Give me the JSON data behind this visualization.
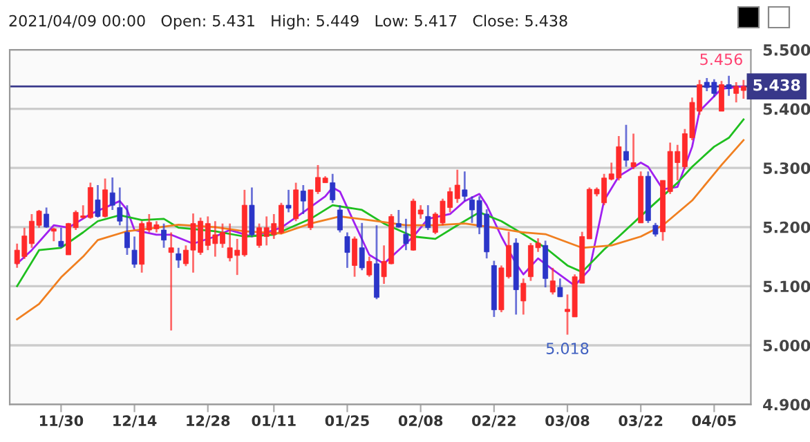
{
  "chart_data": {
    "type": "candlestick",
    "title": "2021/04/09 00:00   Open: 5.431   High: 5.449   Low: 5.417   Close: 5.438",
    "categories": [
      null,
      null,
      null,
      null,
      null,
      null,
      "11/30",
      null,
      null,
      null,
      null,
      null,
      null,
      null,
      null,
      null,
      "12/14",
      null,
      null,
      null,
      null,
      null,
      null,
      null,
      null,
      null,
      "12/28",
      null,
      null,
      null,
      null,
      null,
      null,
      null,
      null,
      "01/11",
      null,
      null,
      null,
      null,
      null,
      null,
      null,
      null,
      null,
      "01/25",
      null,
      null,
      null,
      null,
      null,
      null,
      null,
      null,
      null,
      "02/08",
      null,
      null,
      null,
      null,
      null,
      null,
      null,
      null,
      null,
      "02/22",
      null,
      null,
      null,
      null,
      null,
      null,
      null,
      null,
      null,
      "03/08",
      null,
      null,
      null,
      null,
      null,
      null,
      null,
      null,
      null,
      "03/22",
      null,
      null,
      null,
      null,
      null,
      null,
      null,
      null,
      null,
      "04/05",
      null,
      null,
      null,
      null
    ],
    "ohlc": [
      [
        5.138,
        5.172,
        5.131,
        5.161
      ],
      [
        5.15,
        5.199,
        5.146,
        5.185
      ],
      [
        5.172,
        5.222,
        5.165,
        5.21
      ],
      [
        5.203,
        5.229,
        5.199,
        5.227
      ],
      [
        5.222,
        5.233,
        5.199,
        5.2
      ],
      [
        5.193,
        5.199,
        5.176,
        5.197
      ],
      [
        5.176,
        5.199,
        5.165,
        5.167
      ],
      [
        5.153,
        5.207,
        5.153,
        5.206
      ],
      [
        5.199,
        5.228,
        5.195,
        5.225
      ],
      [
        5.216,
        5.237,
        5.214,
        5.219
      ],
      [
        5.216,
        5.275,
        5.214,
        5.267
      ],
      [
        5.246,
        5.271,
        5.216,
        5.218
      ],
      [
        5.218,
        5.282,
        5.216,
        5.263
      ],
      [
        5.258,
        5.284,
        5.229,
        5.237
      ],
      [
        5.233,
        5.267,
        5.203,
        5.21
      ],
      [
        5.191,
        5.237,
        5.153,
        5.165
      ],
      [
        5.161,
        5.184,
        5.131,
        5.137
      ],
      [
        5.137,
        5.21,
        5.123,
        5.206
      ],
      [
        5.195,
        5.222,
        5.191,
        5.208
      ],
      [
        5.197,
        5.21,
        5.191,
        5.204
      ],
      [
        5.195,
        5.206,
        5.165,
        5.178
      ],
      [
        5.157,
        5.191,
        5.025,
        5.165
      ],
      [
        5.155,
        5.165,
        5.131,
        5.144
      ],
      [
        5.138,
        5.169,
        5.134,
        5.161
      ],
      [
        5.161,
        5.223,
        5.123,
        5.206
      ],
      [
        5.157,
        5.216,
        5.153,
        5.21
      ],
      [
        5.169,
        5.218,
        5.161,
        5.206
      ],
      [
        5.172,
        5.21,
        5.15,
        5.187
      ],
      [
        5.172,
        5.206,
        5.165,
        5.191
      ],
      [
        5.148,
        5.206,
        5.142,
        5.165
      ],
      [
        5.152,
        5.18,
        5.119,
        5.161
      ],
      [
        5.153,
        5.263,
        5.15,
        5.237
      ],
      [
        5.237,
        5.267,
        5.184,
        5.187
      ],
      [
        5.169,
        5.206,
        5.165,
        5.199
      ],
      [
        5.184,
        5.218,
        5.169,
        5.199
      ],
      [
        5.187,
        5.222,
        5.18,
        5.206
      ],
      [
        5.191,
        5.241,
        5.188,
        5.237
      ],
      [
        5.237,
        5.263,
        5.225,
        5.232
      ],
      [
        5.214,
        5.275,
        5.21,
        5.263
      ],
      [
        5.261,
        5.271,
        5.222,
        5.244
      ],
      [
        5.199,
        5.263,
        5.195,
        5.263
      ],
      [
        5.26,
        5.305,
        5.256,
        5.284
      ],
      [
        5.275,
        5.286,
        5.275,
        5.283
      ],
      [
        5.275,
        5.29,
        5.241,
        5.246
      ],
      [
        5.229,
        5.237,
        5.191,
        5.195
      ],
      [
        5.184,
        5.191,
        5.131,
        5.157
      ],
      [
        5.135,
        5.184,
        5.116,
        5.18
      ],
      [
        5.165,
        5.207,
        5.127,
        5.131
      ],
      [
        5.119,
        5.15,
        5.116,
        5.142
      ],
      [
        5.138,
        5.203,
        5.078,
        5.081
      ],
      [
        5.116,
        5.169,
        5.104,
        5.142
      ],
      [
        5.138,
        5.222,
        5.137,
        5.218
      ],
      [
        5.206,
        5.229,
        5.199,
        5.2
      ],
      [
        5.188,
        5.214,
        5.161,
        5.172
      ],
      [
        5.161,
        5.248,
        5.16,
        5.244
      ],
      [
        5.222,
        5.237,
        5.214,
        5.229
      ],
      [
        5.218,
        5.237,
        5.195,
        5.199
      ],
      [
        5.191,
        5.225,
        5.188,
        5.222
      ],
      [
        5.207,
        5.248,
        5.203,
        5.244
      ],
      [
        5.233,
        5.267,
        5.225,
        5.26
      ],
      [
        5.248,
        5.297,
        5.241,
        5.271
      ],
      [
        5.263,
        5.294,
        5.244,
        5.252
      ],
      [
        5.246,
        5.252,
        5.207,
        5.229
      ],
      [
        5.245,
        5.252,
        5.188,
        5.2
      ],
      [
        5.222,
        5.23,
        5.147,
        5.158
      ],
      [
        5.135,
        5.143,
        5.048,
        5.06
      ],
      [
        5.06,
        5.135,
        5.056,
        5.131
      ],
      [
        5.116,
        5.192,
        5.113,
        5.169
      ],
      [
        5.173,
        5.181,
        5.052,
        5.094
      ],
      [
        5.075,
        5.113,
        5.052,
        5.105
      ],
      [
        5.116,
        5.173,
        5.109,
        5.169
      ],
      [
        5.165,
        5.181,
        5.158,
        5.173
      ],
      [
        5.169,
        5.177,
        5.098,
        5.113
      ],
      [
        5.09,
        5.131,
        5.086,
        5.109
      ],
      [
        5.098,
        5.113,
        5.082,
        5.082
      ],
      [
        5.057,
        5.086,
        5.018,
        5.061
      ],
      [
        5.048,
        5.12,
        5.048,
        5.116
      ],
      [
        5.105,
        5.192,
        5.105,
        5.184
      ],
      [
        5.18,
        5.267,
        5.18,
        5.264
      ],
      [
        5.256,
        5.267,
        5.252,
        5.264
      ],
      [
        5.241,
        5.29,
        5.237,
        5.283
      ],
      [
        5.281,
        5.309,
        5.279,
        5.29
      ],
      [
        5.283,
        5.354,
        5.279,
        5.336
      ],
      [
        5.328,
        5.373,
        5.302,
        5.313
      ],
      [
        5.302,
        5.358,
        5.298,
        5.309
      ],
      [
        5.207,
        5.294,
        5.207,
        5.286
      ],
      [
        5.286,
        5.294,
        5.207,
        5.211
      ],
      [
        5.203,
        5.207,
        5.184,
        5.188
      ],
      [
        5.192,
        5.279,
        5.177,
        5.279
      ],
      [
        5.26,
        5.343,
        5.256,
        5.328
      ],
      [
        5.309,
        5.339,
        5.279,
        5.328
      ],
      [
        5.302,
        5.366,
        5.298,
        5.358
      ],
      [
        5.351,
        5.419,
        5.347,
        5.411
      ],
      [
        5.396,
        5.449,
        5.39,
        5.441
      ],
      [
        5.445,
        5.452,
        5.43,
        5.436
      ],
      [
        5.445,
        5.45,
        5.42,
        5.426
      ],
      [
        5.396,
        5.447,
        5.396,
        5.441
      ],
      [
        5.441,
        5.456,
        5.422,
        5.434
      ],
      [
        5.426,
        5.445,
        5.411,
        5.438
      ],
      [
        5.431,
        5.449,
        5.417,
        5.438
      ]
    ],
    "colors": [
      "#ff2a2a",
      "#ff2a2a",
      "#ff2a2a",
      "#ff2a2a",
      "#2b35c8",
      "#ff2a2a",
      "#2b35c8",
      "#ff2a2a",
      "#ff2a2a",
      "#ff2a2a",
      "#ff2a2a",
      "#2b35c8",
      "#ff2a2a",
      "#2b35c8",
      "#2b35c8",
      "#2b35c8",
      "#2b35c8",
      "#ff2a2a",
      "#ff2a2a",
      "#ff2a2a",
      "#2b35c8",
      "#ff2a2a",
      "#2b35c8",
      "#ff2a2a",
      "#ff2a2a",
      "#ff2a2a",
      "#ff2a2a",
      "#ff2a2a",
      "#ff2a2a",
      "#ff2a2a",
      "#ff2a2a",
      "#ff2a2a",
      "#2b35c8",
      "#ff2a2a",
      "#ff2a2a",
      "#ff2a2a",
      "#ff2a2a",
      "#2b35c8",
      "#ff2a2a",
      "#2b35c8",
      "#ff2a2a",
      "#ff2a2a",
      "#ff2a2a",
      "#2b35c8",
      "#2b35c8",
      "#2b35c8",
      "#ff2a2a",
      "#2b35c8",
      "#ff2a2a",
      "#2b35c8",
      "#ff2a2a",
      "#ff2a2a",
      "#2b35c8",
      "#2b35c8",
      "#ff2a2a",
      "#ff2a2a",
      "#2b35c8",
      "#ff2a2a",
      "#ff2a2a",
      "#ff2a2a",
      "#ff2a2a",
      "#2b35c8",
      "#2b35c8",
      "#2b35c8",
      "#2b35c8",
      "#2b35c8",
      "#ff2a2a",
      "#ff2a2a",
      "#2b35c8",
      "#ff2a2a",
      "#ff2a2a",
      "#ff2a2a",
      "#2b35c8",
      "#ff2a2a",
      "#2b35c8",
      "#ff2a2a",
      "#ff2a2a",
      "#ff2a2a",
      "#ff2a2a",
      "#ff2a2a",
      "#ff2a2a",
      "#ff2a2a",
      "#ff2a2a",
      "#2b35c8",
      "#ff2a2a",
      "#ff2a2a",
      "#2b35c8",
      "#2b35c8",
      "#ff2a2a",
      "#ff2a2a",
      "#ff2a2a",
      "#ff2a2a",
      "#ff2a2a",
      "#ff2a2a",
      "#2b35c8",
      "#2b35c8",
      "#ff2a2a",
      "#2b35c8",
      "#ff2a2a",
      "#ff2a2a"
    ],
    "series": [
      {
        "type": "line",
        "color": "#a020f0",
        "values": [
          5.138,
          null,
          5.161,
          null,
          null,
          5.203,
          null,
          5.199,
          null,
          null,
          5.222,
          null,
          null,
          null,
          5.244,
          5.229,
          5.195,
          null,
          null,
          5.187,
          null,
          5.187,
          null,
          null,
          5.172,
          null,
          null,
          5.184,
          null,
          5.195,
          null,
          null,
          5.184,
          null,
          5.191,
          null,
          5.199,
          null,
          null,
          5.225,
          null,
          null,
          5.252,
          5.267,
          5.26,
          null,
          5.206,
          null,
          5.153,
          null,
          5.138,
          null,
          5.161,
          null,
          5.184,
          null,
          5.214,
          null,
          null,
          5.222,
          null,
          5.244,
          null,
          5.256,
          5.237,
          null,
          5.184,
          null,
          5.138,
          5.12,
          null,
          5.147,
          null,
          5.128,
          null,
          null,
          5.101,
          null,
          5.128,
          null,
          5.245,
          null,
          5.286,
          null,
          null,
          5.309,
          5.302,
          null,
          5.264,
          null,
          5.268,
          null,
          5.336,
          5.396,
          null,
          null,
          5.434,
          null,
          null,
          5.438
        ]
      },
      {
        "type": "line",
        "color": "#1fbf1f",
        "values": [
          5.1,
          null,
          null,
          5.161,
          null,
          null,
          5.165,
          null,
          null,
          5.191,
          null,
          5.21,
          null,
          null,
          5.22,
          null,
          null,
          5.212,
          null,
          null,
          5.214,
          null,
          5.199,
          null,
          null,
          null,
          null,
          5.193,
          null,
          null,
          null,
          5.184,
          null,
          null,
          null,
          5.187,
          null,
          null,
          null,
          null,
          5.214,
          null,
          null,
          5.237,
          null,
          null,
          null,
          5.229,
          null,
          null,
          5.206,
          null,
          null,
          null,
          5.184,
          null,
          null,
          5.18,
          null,
          null,
          5.203,
          null,
          null,
          5.225,
          null,
          null,
          5.21,
          null,
          null,
          5.188,
          null,
          null,
          5.165,
          null,
          null,
          5.135,
          null,
          5.124,
          null,
          null,
          5.162,
          null,
          5.184,
          null,
          null,
          null,
          5.23,
          null,
          null,
          null,
          5.275,
          null,
          5.302,
          null,
          null,
          5.336,
          null,
          5.351,
          null,
          5.382
        ]
      },
      {
        "type": "line",
        "color": "#f07f20",
        "values": [
          5.044,
          null,
          null,
          5.07,
          null,
          null,
          5.115,
          null,
          null,
          5.15,
          null,
          5.178,
          null,
          null,
          null,
          5.193,
          null,
          null,
          null,
          5.199,
          null,
          null,
          5.204,
          null,
          null,
          null,
          null,
          5.2,
          null,
          null,
          null,
          5.193,
          null,
          null,
          null,
          null,
          5.189,
          null,
          null,
          null,
          5.206,
          null,
          null,
          null,
          5.218,
          null,
          null,
          null,
          null,
          5.21,
          null,
          null,
          null,
          5.203,
          null,
          null,
          null,
          5.203,
          null,
          null,
          null,
          5.206,
          null,
          null,
          null,
          5.199,
          null,
          null,
          null,
          5.191,
          null,
          null,
          5.188,
          null,
          null,
          null,
          null,
          5.165,
          null,
          null,
          null,
          5.169,
          null,
          null,
          null,
          5.184,
          null,
          null,
          5.203,
          null,
          null,
          null,
          5.245,
          null,
          null,
          null,
          5.305,
          null,
          null,
          5.347
        ]
      }
    ],
    "ylim": [
      4.9,
      5.5
    ],
    "yticks": [
      {
        "value": 4.9,
        "label": "4.900"
      },
      {
        "value": 5.0,
        "label": "5.000"
      },
      {
        "value": 5.1,
        "label": "5.100"
      },
      {
        "value": 5.2,
        "label": "5.200"
      },
      {
        "value": 5.3,
        "label": "5.300"
      },
      {
        "value": 5.4,
        "label": "5.400"
      },
      {
        "value": 5.5,
        "label": "5.500"
      }
    ],
    "grid": "y",
    "ref_lines": [
      {
        "axis": "y",
        "value": 5.438,
        "label": "5.438",
        "color": "#38388a"
      }
    ],
    "annotations": [
      {
        "text": "5.456",
        "y": 5.456
      },
      {
        "text": "5.018",
        "y": 5.018
      }
    ]
  }
}
